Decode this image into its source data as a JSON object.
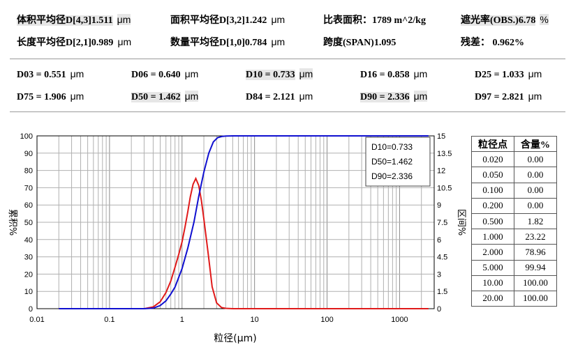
{
  "summary": {
    "row1": [
      {
        "label": "体积平均径D[4,3]1.511",
        "unit": "μm",
        "highlight": true
      },
      {
        "label": "面积平均径D[3,2]1.242",
        "unit": "μm",
        "highlight": false
      },
      {
        "label": "比表面积：1789 m^2/kg",
        "unit": "",
        "highlight": false
      },
      {
        "label": "遮光率(OBS.)6.78",
        "unit": "%",
        "highlight": true
      }
    ],
    "row2": [
      {
        "label": "长度平均径D[2,1]0.989",
        "unit": "μm",
        "highlight": false
      },
      {
        "label": "数量平均径D[1,0]0.784",
        "unit": "μm",
        "highlight": false
      },
      {
        "label": "跨度(SPAN)1.095",
        "unit": "",
        "highlight": false
      },
      {
        "label": "残差： 0.962%",
        "unit": "",
        "highlight": false
      }
    ]
  },
  "dvalues": {
    "row1": [
      {
        "label": "D03 = 0.551",
        "unit": "μm",
        "highlight": false
      },
      {
        "label": "D06 = 0.640",
        "unit": "μm",
        "highlight": false
      },
      {
        "label": "D10 = 0.733",
        "unit": "μm",
        "highlight": true
      },
      {
        "label": "D16 = 0.858",
        "unit": "μm",
        "highlight": false
      },
      {
        "label": "D25 = 1.033",
        "unit": "μm",
        "highlight": false
      }
    ],
    "row2": [
      {
        "label": "D75 = 1.906",
        "unit": "μm",
        "highlight": false
      },
      {
        "label": "D50 = 1.462",
        "unit": "μm",
        "highlight": true
      },
      {
        "label": "D84 = 2.121",
        "unit": "μm",
        "highlight": false
      },
      {
        "label": "D90 = 2.336",
        "unit": "μm",
        "highlight": true
      },
      {
        "label": "D97 = 2.821",
        "unit": "μm",
        "highlight": false
      }
    ]
  },
  "chart_data": {
    "type": "line",
    "xlabel": "粒径(μm)",
    "ylabel_left": "累积%",
    "ylabel_right": "区间%",
    "x_scale": "log",
    "xlim": [
      0.01,
      3000
    ],
    "x_ticks": [
      0.01,
      0.1,
      1,
      10,
      100,
      1000
    ],
    "x_tick_labels": [
      "0.01",
      "0.1",
      "1",
      "10",
      "100",
      "1000"
    ],
    "ylim_left": [
      0,
      100
    ],
    "y_ticks_left": [
      0,
      10,
      20,
      30,
      40,
      50,
      60,
      70,
      80,
      90,
      100
    ],
    "ylim_right": [
      0,
      15
    ],
    "y_ticks_right": [
      "0",
      "1.5",
      "3",
      "4.5",
      "6",
      "7.5",
      "9",
      "10.5",
      "12",
      "13.5",
      "15"
    ],
    "grid": true,
    "legend_box": [
      "D10=0.733",
      "D50=1.462",
      "D90=2.336"
    ],
    "colors": {
      "cumulative": "#1010d0",
      "interval": "#e01a1a"
    },
    "cumulative": {
      "x": [
        0.02,
        0.3,
        0.4,
        0.5,
        0.6,
        0.7,
        0.8,
        1.0,
        1.2,
        1.46,
        1.7,
        2.0,
        2.34,
        2.7,
        3.1,
        3.6,
        4.0,
        5.0,
        6.0,
        10,
        100,
        1000,
        2500
      ],
      "y": [
        0,
        0,
        0.3,
        1.8,
        4.5,
        8.5,
        12.5,
        23.2,
        35,
        50,
        65,
        79,
        90,
        96.5,
        99,
        99.7,
        99.9,
        100,
        100,
        100,
        100,
        100,
        100
      ]
    },
    "interval": {
      "x": [
        0.02,
        0.3,
        0.4,
        0.5,
        0.6,
        0.7,
        0.8,
        0.9,
        1.0,
        1.1,
        1.2,
        1.3,
        1.42,
        1.55,
        1.7,
        1.85,
        2.0,
        2.3,
        2.6,
        3.0,
        3.5,
        4.0,
        5.0,
        10,
        100,
        1000,
        2500
      ],
      "y": [
        0,
        0,
        0.15,
        0.6,
        1.4,
        2.4,
        3.6,
        4.7,
        5.8,
        7.1,
        8.4,
        9.7,
        10.8,
        11.3,
        10.7,
        9.4,
        7.8,
        4.7,
        1.9,
        0.5,
        0.1,
        0.03,
        0,
        0,
        0,
        0,
        0
      ]
    }
  },
  "table": {
    "headers": [
      "粒径点",
      "含量%"
    ],
    "rows": [
      [
        "0.020",
        "0.00"
      ],
      [
        "0.050",
        "0.00"
      ],
      [
        "0.100",
        "0.00"
      ],
      [
        "0.200",
        "0.00"
      ],
      [
        "0.500",
        "1.82"
      ],
      [
        "1.000",
        "23.22"
      ],
      [
        "2.000",
        "78.96"
      ],
      [
        "5.000",
        "99.94"
      ],
      [
        "10.00",
        "100.00"
      ],
      [
        "20.00",
        "100.00"
      ]
    ]
  }
}
